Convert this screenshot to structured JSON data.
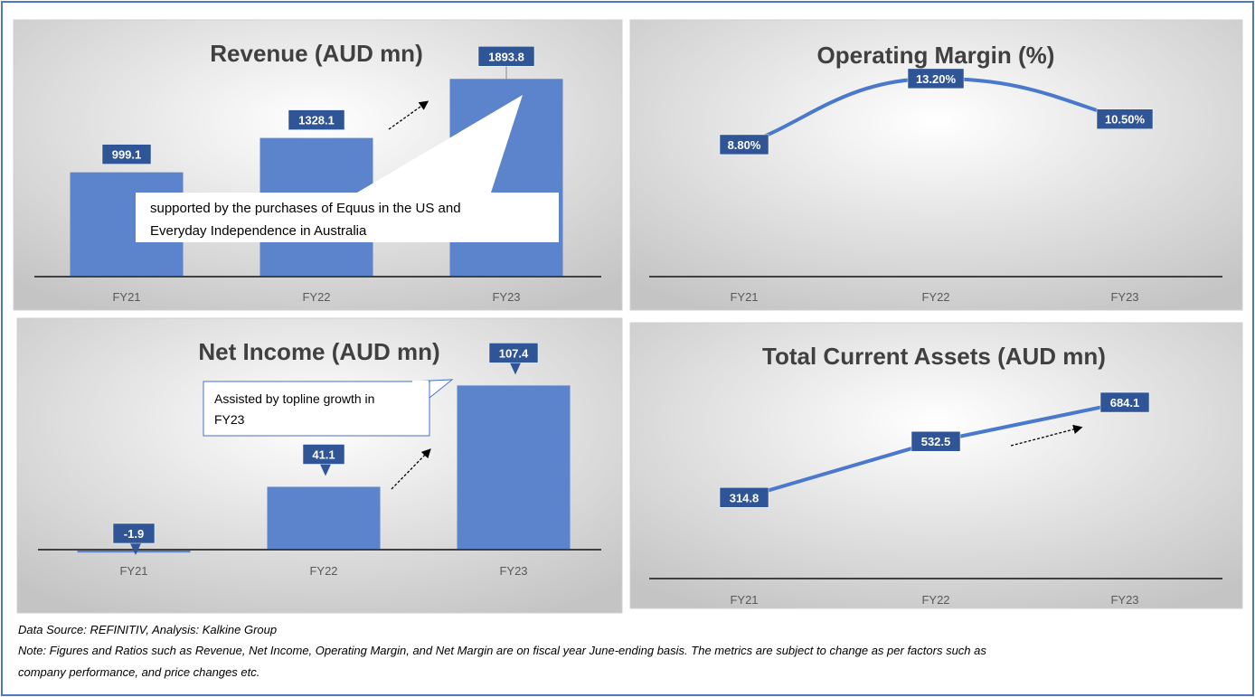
{
  "chart_data": [
    {
      "id": "revenue",
      "type": "bar",
      "title": "Revenue (AUD mn)",
      "categories": [
        "FY21",
        "FY22",
        "FY23"
      ],
      "values": [
        999.1,
        1328.1,
        1893.8
      ],
      "labels": [
        "999.1",
        "1328.1",
        "1893.8"
      ],
      "ylim": [
        0,
        2000
      ],
      "xlabel": "",
      "ylabel": "",
      "grid": false,
      "annotation": [
        "supported by the purchases of Equus in the US and",
        "Everyday Independence in Australia"
      ]
    },
    {
      "id": "operating_margin",
      "type": "line",
      "title": "Operating Margin (%)",
      "categories": [
        "FY21",
        "FY22",
        "FY23"
      ],
      "values": [
        8.8,
        13.2,
        10.5
      ],
      "labels": [
        "8.80%",
        "13.20%",
        "10.50%"
      ],
      "ylim": [
        0,
        14
      ],
      "smooth": true,
      "xlabel": "",
      "ylabel": "",
      "grid": false
    },
    {
      "id": "net_income",
      "type": "bar",
      "title": "Net Income (AUD mn)",
      "categories": [
        "FY21",
        "FY22",
        "FY23"
      ],
      "values": [
        -1.9,
        41.1,
        107.4
      ],
      "labels": [
        "-1.9",
        "41.1",
        "107.4"
      ],
      "ylim": [
        0,
        110
      ],
      "xlabel": "",
      "ylabel": "",
      "grid": false,
      "annotation": [
        "Assisted by topline growth in",
        "FY23"
      ]
    },
    {
      "id": "total_current_assets",
      "type": "line",
      "title": "Total Current Assets  (AUD mn)",
      "categories": [
        "FY21",
        "FY22",
        "FY23"
      ],
      "values": [
        314.8,
        532.5,
        684.1
      ],
      "labels": [
        "314.8",
        "532.5",
        "684.1"
      ],
      "ylim": [
        0,
        700
      ],
      "smooth": false,
      "xlabel": "",
      "ylabel": "",
      "grid": false
    }
  ],
  "footer": {
    "source": "Data Source: REFINITIV, Analysis: Kalkine Group",
    "note_line1": "Note: Figures and Ratios such as Revenue, Net Income, Operating Margin, and Net Margin are on fiscal year June-ending basis. The metrics are subject to change as per factors such as",
    "note_line2": "company performance, and price changes etc."
  },
  "colors": {
    "bar": "#5b84cc",
    "line": "#4a78cc",
    "label_bg": "#2f5597",
    "axis": "#404040"
  }
}
